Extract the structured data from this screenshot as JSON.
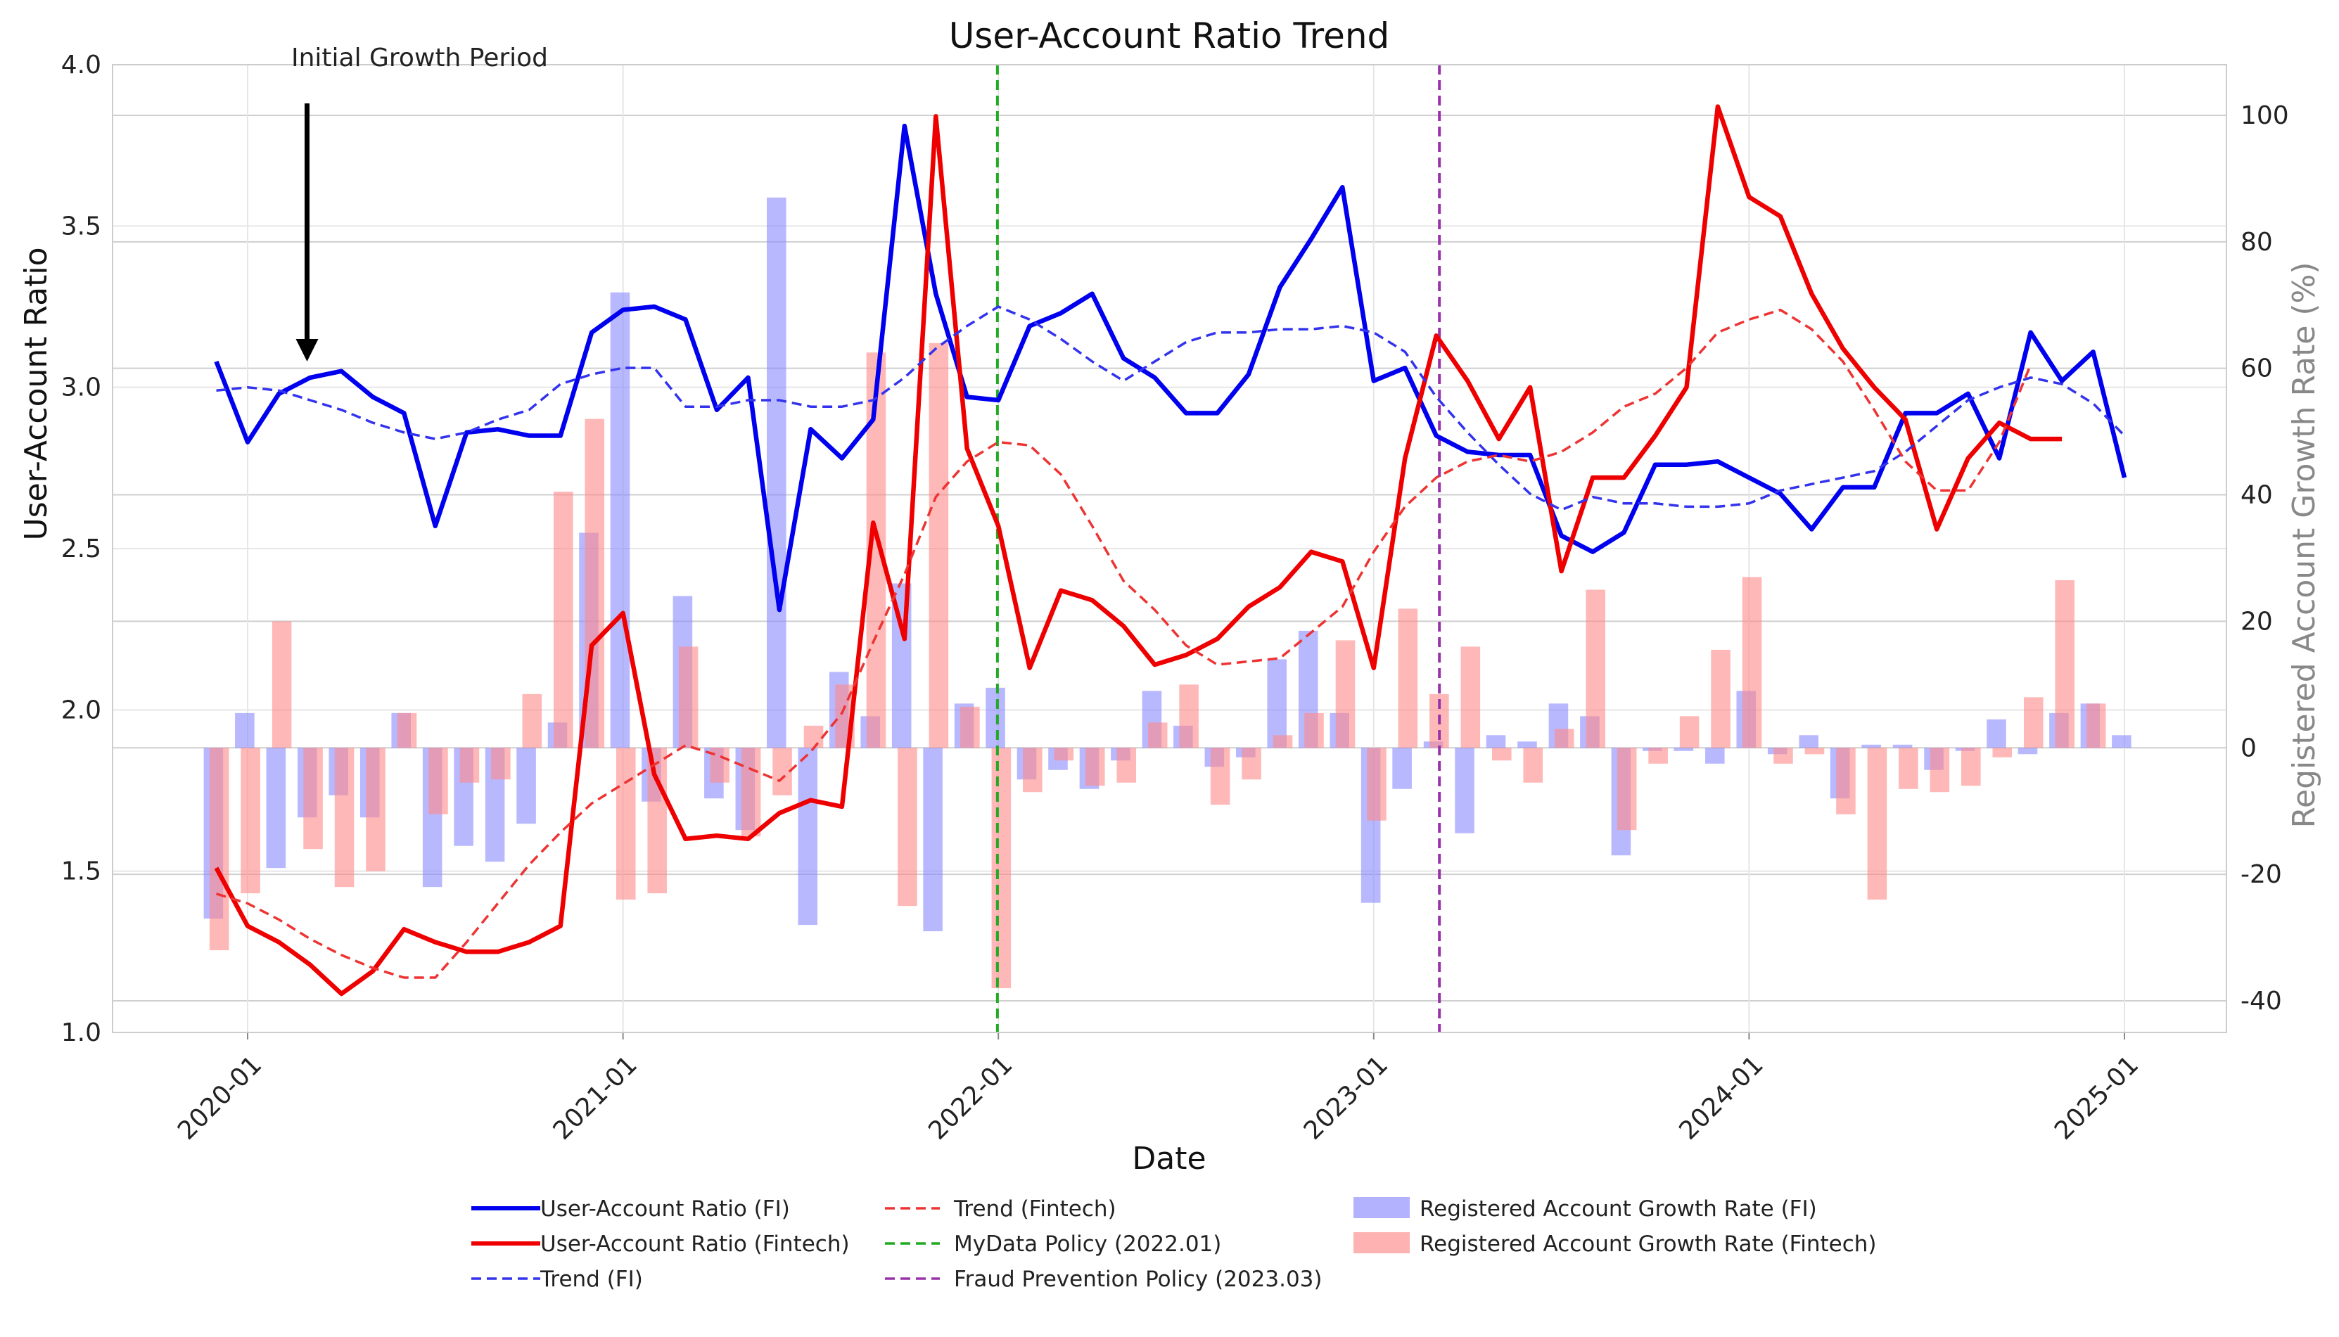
{
  "chart_data": {
    "type": "line",
    "title": "User-Account Ratio Trend",
    "xlabel": "Date",
    "ylabel": "User-Account Ratio",
    "y2label": "Registered Account Growth Rate (%)",
    "ylim": [
      1.0,
      4.0
    ],
    "y2lim": [
      -45,
      108
    ],
    "y_ticks": [
      "1.0",
      "1.5",
      "2.0",
      "2.5",
      "3.0",
      "3.5",
      "4.0"
    ],
    "y2_ticks": [
      "-40",
      "-20",
      "0",
      "20",
      "40",
      "60",
      "80",
      "100"
    ],
    "x_ticks": [
      "2020-01",
      "2021-01",
      "2022-01",
      "2023-01",
      "2024-01",
      "2025-01"
    ],
    "grid": true,
    "start_month": "2019-12",
    "months": 62,
    "series": [
      {
        "name": "User-Account Ratio (FI)",
        "color": "#0000ee",
        "style": "solid",
        "axis": "left",
        "values": [
          3.08,
          2.83,
          2.98,
          3.03,
          3.05,
          2.97,
          2.92,
          2.57,
          2.86,
          2.87,
          2.85,
          2.85,
          3.17,
          3.24,
          3.25,
          3.21,
          2.93,
          3.03,
          2.31,
          2.87,
          2.78,
          2.9,
          3.81,
          3.29,
          2.97,
          2.96,
          3.19,
          3.23,
          3.29,
          3.09,
          3.03,
          2.92,
          2.92,
          3.04,
          3.31,
          3.46,
          3.62,
          3.02,
          3.06,
          2.85,
          2.8,
          2.79,
          2.79,
          2.54,
          2.49,
          2.55,
          2.76,
          2.76,
          2.77,
          2.72,
          2.67,
          2.56,
          2.69,
          2.69,
          2.92,
          2.92,
          2.98,
          2.78,
          3.17,
          3.02,
          3.11,
          2.72
        ]
      },
      {
        "name": "User-Account Ratio (Fintech)",
        "color": "#ee0000",
        "style": "solid",
        "axis": "left",
        "values": [
          1.51,
          1.33,
          1.28,
          1.21,
          1.12,
          1.19,
          1.32,
          1.28,
          1.25,
          1.25,
          1.28,
          1.33,
          2.2,
          2.3,
          1.8,
          1.6,
          1.61,
          1.6,
          1.68,
          1.72,
          1.7,
          2.58,
          2.22,
          3.84,
          2.81,
          2.57,
          2.13,
          2.37,
          2.34,
          2.26,
          2.14,
          2.17,
          2.22,
          2.32,
          2.38,
          2.49,
          2.46,
          2.13,
          2.78,
          3.16,
          3.02,
          2.84,
          3.0,
          2.43,
          2.72,
          2.72,
          2.85,
          3.0,
          3.87,
          3.59,
          3.53,
          3.29,
          3.12,
          3.0,
          2.9,
          2.56,
          2.78,
          2.89,
          2.84,
          2.84
        ]
      },
      {
        "name": "Trend (FI)",
        "color": "#3333ee",
        "style": "dashed",
        "axis": "left",
        "values": [
          2.99,
          3.0,
          2.99,
          2.96,
          2.93,
          2.89,
          2.86,
          2.84,
          2.86,
          2.9,
          2.93,
          3.01,
          3.04,
          3.06,
          3.06,
          2.94,
          2.94,
          2.96,
          2.96,
          2.94,
          2.94,
          2.96,
          3.03,
          3.12,
          3.19,
          3.25,
          3.21,
          3.15,
          3.08,
          3.02,
          3.08,
          3.14,
          3.17,
          3.17,
          3.18,
          3.18,
          3.19,
          3.17,
          3.11,
          2.97,
          2.86,
          2.76,
          2.67,
          2.62,
          2.66,
          2.64,
          2.64,
          2.63,
          2.63,
          2.64,
          2.68,
          2.7,
          2.72,
          2.74,
          2.8,
          2.88,
          2.96,
          3.0,
          3.03,
          3.01,
          2.95,
          2.85
        ]
      },
      {
        "name": "Trend (Fintech)",
        "color": "#ee3333",
        "style": "dashed",
        "axis": "left",
        "values": [
          1.43,
          1.4,
          1.35,
          1.29,
          1.24,
          1.2,
          1.17,
          1.17,
          1.28,
          1.4,
          1.52,
          1.62,
          1.71,
          1.77,
          1.83,
          1.89,
          1.86,
          1.82,
          1.78,
          1.87,
          1.99,
          2.21,
          2.42,
          2.66,
          2.77,
          2.83,
          2.82,
          2.73,
          2.57,
          2.4,
          2.31,
          2.2,
          2.14,
          2.15,
          2.16,
          2.24,
          2.32,
          2.49,
          2.63,
          2.72,
          2.77,
          2.79,
          2.77,
          2.8,
          2.86,
          2.94,
          2.98,
          3.06,
          3.17,
          3.21,
          3.24,
          3.18,
          3.08,
          2.93,
          2.77,
          2.68,
          2.68,
          2.83,
          3.07
        ]
      }
    ],
    "bar_series": [
      {
        "name": "Registered Account Growth Rate (FI)",
        "color": "#8888ff",
        "axis": "right",
        "values": [
          -27,
          5.5,
          -19,
          -11,
          -7.5,
          -11,
          5.5,
          -22,
          -15.5,
          -18,
          -12,
          4,
          34,
          72,
          -8.5,
          24,
          -8,
          -13,
          87,
          -28,
          12,
          5,
          26,
          -29,
          7,
          9.5,
          -5,
          -3.5,
          -6.5,
          -2,
          9,
          3.5,
          -3,
          -1.5,
          14,
          18.5,
          5.5,
          -24.5,
          -6.5,
          1,
          -13.5,
          2,
          1,
          7,
          5,
          -17,
          -0.5,
          -0.5,
          -2.5,
          9,
          -1,
          2,
          -8,
          0.5,
          0.5,
          -3.5,
          -0.5,
          4.5,
          -1,
          5.5,
          7,
          2
        ]
      },
      {
        "name": "Registered Account Growth Rate (Fintech)",
        "color": "#ff8888",
        "axis": "right",
        "values": [
          -32,
          -23,
          20,
          -16,
          -22,
          -19.5,
          5.5,
          -10.5,
          -5.5,
          -5,
          8.5,
          40.5,
          52,
          -24,
          -23,
          16,
          -5.5,
          -14,
          -7.5,
          3.5,
          10,
          62.5,
          -25,
          64,
          6.5,
          -38,
          -7,
          -2,
          -6,
          -5.5,
          4,
          10,
          -9,
          -5,
          2,
          5.5,
          17,
          -11.5,
          22,
          8.5,
          16,
          -2,
          -5.5,
          3,
          25,
          -13,
          -2.5,
          5,
          15.5,
          27,
          -2.5,
          -1,
          -10.5,
          -24,
          -6.5,
          -7,
          -6,
          -1.5,
          8,
          26.5,
          7
        ]
      }
    ],
    "vlines": [
      {
        "name": "MyData Policy (2022.01)",
        "month_index": 24.97,
        "color": "#22aa22"
      },
      {
        "name": "Fraud Prevention Policy (2023.03)",
        "month_index": 39.1,
        "color": "#9933aa"
      }
    ],
    "annotations": [
      {
        "text": "Initial Growth Period",
        "month_index": 2.9,
        "arrow_from": 3.88,
        "arrow_to": 3.08
      }
    ],
    "legend_position": "bottom-center"
  }
}
